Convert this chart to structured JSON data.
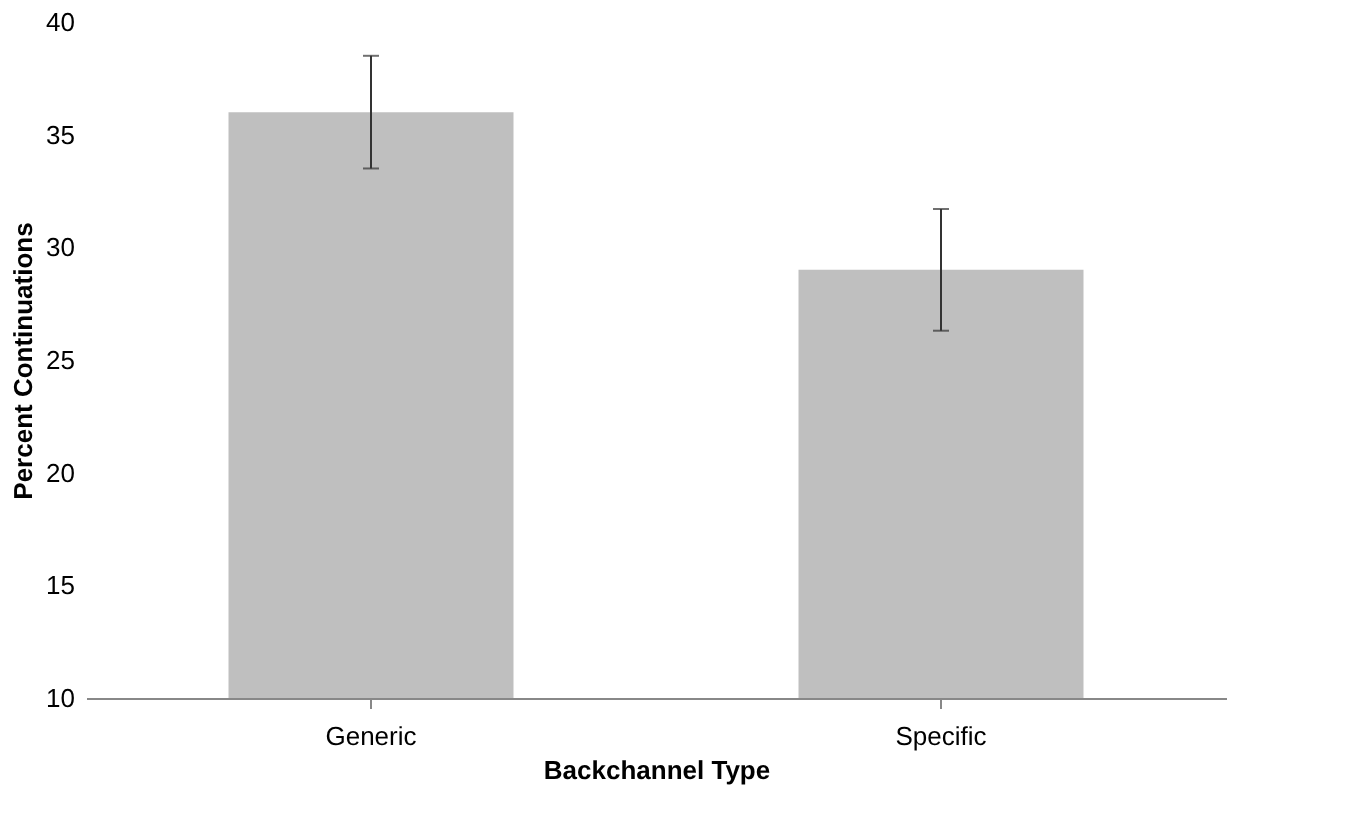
{
  "chart_data": {
    "type": "bar",
    "xlabel": "Backchannel Type",
    "ylabel": "Percent Continuations",
    "categories": [
      "Generic",
      "Specific"
    ],
    "values": [
      36,
      29
    ],
    "errors": [
      2.5,
      2.7
    ],
    "color": "#bfbfbf",
    "ylim": [
      10,
      40
    ],
    "yticks": [
      10,
      15,
      20,
      25,
      30,
      35,
      40
    ],
    "grid": false
  }
}
